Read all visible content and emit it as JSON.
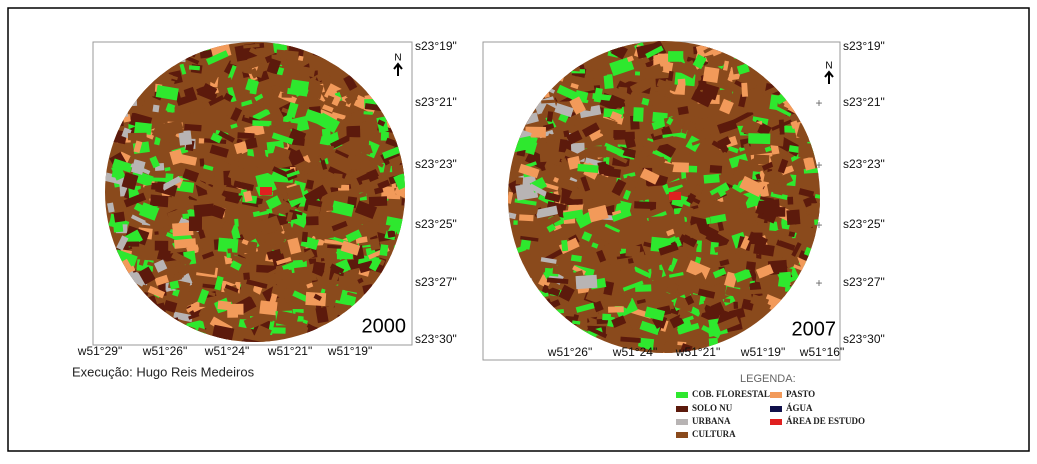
{
  "north": "N",
  "maps": [
    {
      "year": "2000",
      "lat_labels": [
        "s23°19\"",
        "s23°21\"",
        "s23°23\"",
        "s23°25\"",
        "s23°27\"",
        "s23°30\""
      ],
      "lon_labels": [
        "w51°29\"",
        "w51°26\"",
        "w51°24\"",
        "w51°21\"",
        "w51°19\""
      ]
    },
    {
      "year": "2007",
      "lat_labels": [
        "s23°19\"",
        "s23°21\"",
        "s23°23\"",
        "s23°25\"",
        "s23°27\"",
        "s23°30\""
      ],
      "lon_labels": [
        "w51°26\"",
        "w51°24\"",
        "w51°21\"",
        "w51°19\"",
        "w51°16\""
      ]
    }
  ],
  "credit": "Execução: Hugo Reis Medeiros",
  "legend": {
    "title": "LEGENDA:",
    "items": [
      {
        "label": "COB. FLORESTAL",
        "color": "#2ee82e"
      },
      {
        "label": "SOLO NU",
        "color": "#5c1a0c"
      },
      {
        "label": "URBANA",
        "color": "#b8b4b4"
      },
      {
        "label": "CULTURA",
        "color": "#8a4a1c"
      },
      {
        "label": "PASTO",
        "color": "#f29a5a"
      },
      {
        "label": "ÁGUA",
        "color": "#10104a"
      },
      {
        "label": "ÁREA DE ESTUDO",
        "color": "#e02020"
      }
    ]
  }
}
